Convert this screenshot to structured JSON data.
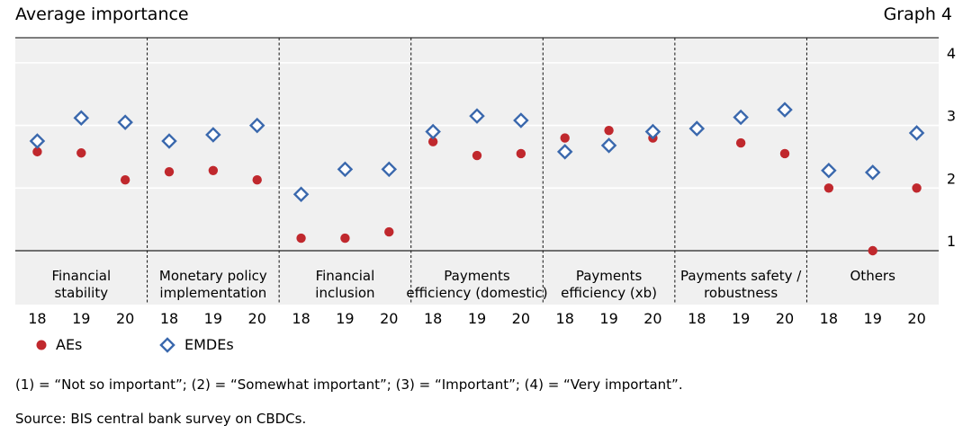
{
  "header": {
    "title": "Average importance",
    "graph_label": "Graph 4"
  },
  "chart_data": {
    "type": "scatter",
    "groups": [
      {
        "label": [
          "Financial",
          "stability"
        ],
        "years": [
          "18",
          "19",
          "20"
        ]
      },
      {
        "label": [
          "Monetary policy",
          "implementation"
        ],
        "years": [
          "18",
          "19",
          "20"
        ]
      },
      {
        "label": [
          "Financial",
          "inclusion"
        ],
        "years": [
          "18",
          "19",
          "20"
        ]
      },
      {
        "label": [
          "Payments",
          "efficiency (domestic)"
        ],
        "years": [
          "18",
          "19",
          "20"
        ]
      },
      {
        "label": [
          "Payments",
          "efficiency (xb)"
        ],
        "years": [
          "18",
          "19",
          "20"
        ]
      },
      {
        "label": [
          "Payments safety /",
          "robustness"
        ],
        "years": [
          "18",
          "19",
          "20"
        ]
      },
      {
        "label": [
          "Others"
        ],
        "years": [
          "18",
          "19",
          "20"
        ]
      }
    ],
    "series": [
      {
        "name": "AEs",
        "marker": "circle",
        "color": "#c0282d",
        "values": [
          2.58,
          2.56,
          2.13,
          2.26,
          2.28,
          2.13,
          1.2,
          1.2,
          1.3,
          2.74,
          2.52,
          2.55,
          2.8,
          2.92,
          2.8,
          2.95,
          2.72,
          2.55,
          2.0,
          1.0,
          2.0
        ]
      },
      {
        "name": "EMDEs",
        "marker": "diamond",
        "color": "#3a68ad",
        "values": [
          2.75,
          3.12,
          3.05,
          2.75,
          2.85,
          3.0,
          1.9,
          2.3,
          2.3,
          2.9,
          3.15,
          3.08,
          2.58,
          2.68,
          2.9,
          2.95,
          3.13,
          3.25,
          2.28,
          2.25,
          2.88
        ]
      }
    ],
    "ylim": [
      1,
      4.4
    ],
    "yticks": [
      "1",
      "2",
      "3",
      "4"
    ],
    "plot_background": "#f0f0f0",
    "grid": true,
    "legend_position": "bottom-left"
  },
  "notes": {
    "definition": "(1) = “Not so important”; (2) = “Somewhat important”; (3) = “Important”; (4) = “Very important”.",
    "source": "Source: BIS central bank survey on CBDCs."
  }
}
